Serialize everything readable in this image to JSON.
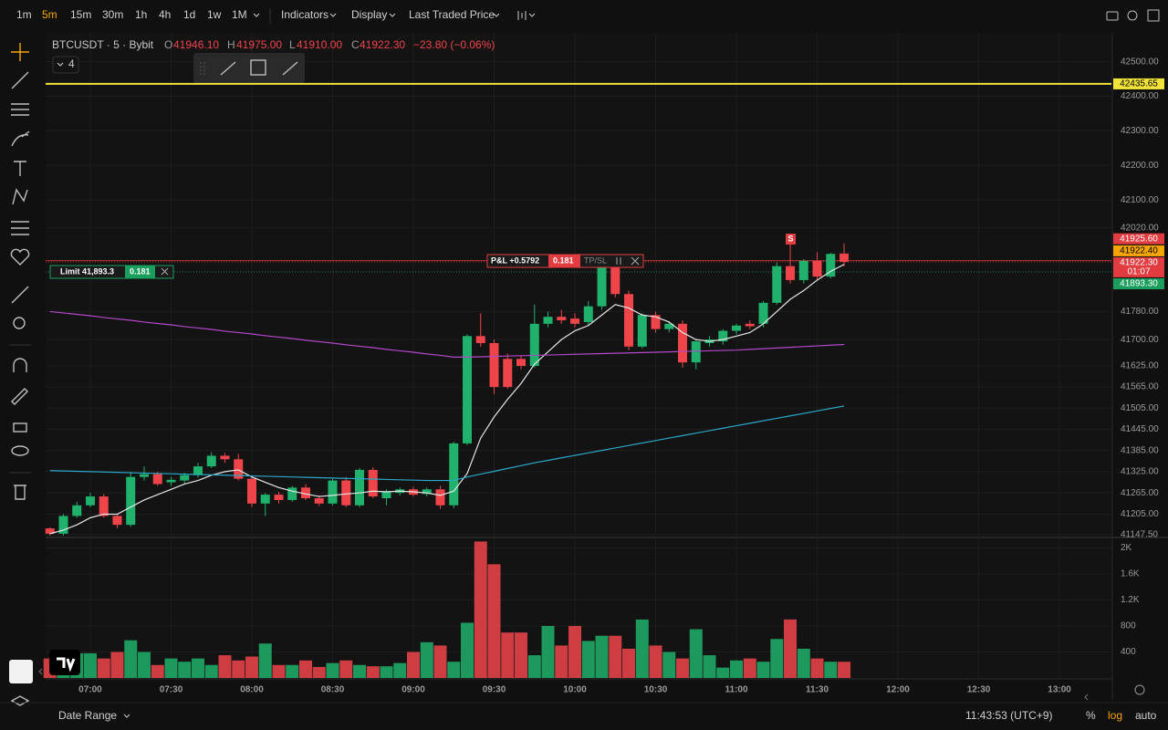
{
  "toolbar": {
    "intervals": [
      "1m",
      "5m",
      "15m",
      "30m",
      "1h",
      "4h",
      "1d",
      "1w",
      "1M"
    ],
    "active_interval": 1,
    "menus": [
      "Indicators",
      "Display",
      "Last Traded Price"
    ]
  },
  "legend": {
    "symbol": "BTCUSDT · 5 · Bybit",
    "o_label": "O",
    "open": "41946.10",
    "h_label": "H",
    "high": "41975.00",
    "l_label": "L",
    "low": "41910.00",
    "c_label": "C",
    "close": "41922.30",
    "change": "−23.80 (−0.06%)",
    "indicator_count": "4"
  },
  "position_chip": {
    "pnl": "P&L +0.5792",
    "qty": "0.181",
    "tpsl": "TP/SL"
  },
  "order_chip": {
    "label": "Limit 41,893.3",
    "qty": "0.181"
  },
  "sell_marker": "S",
  "bottom_bar": {
    "date_range": "Date Range",
    "clock": "11:43:53 (UTC+9)",
    "percent": "%",
    "log": "log",
    "auto": "auto"
  },
  "chart_data": {
    "type": "candlestick",
    "log": true,
    "grid": true,
    "up_color": "#20b26c",
    "down_color": "#ef454a",
    "x": [
      405,
      410,
      415,
      420,
      425,
      430,
      435,
      440,
      445,
      450,
      455,
      460,
      465,
      470,
      475,
      480,
      485,
      490,
      495,
      500,
      505,
      510,
      515,
      520,
      525,
      530,
      535,
      540,
      545,
      550,
      555,
      560,
      565,
      570,
      575,
      580,
      585,
      590,
      595,
      600,
      605,
      610,
      615,
      620,
      625,
      630,
      635,
      640,
      645,
      650,
      655,
      660,
      665,
      670,
      675,
      680,
      685,
      690,
      695,
      700
    ],
    "xlim": [
      403.4,
      799.3
    ],
    "xticks": [
      {
        "value": 420,
        "label": "07:00"
      },
      {
        "value": 450,
        "label": "07:30"
      },
      {
        "value": 480,
        "label": "08:00"
      },
      {
        "value": 510,
        "label": "08:30"
      },
      {
        "value": 540,
        "label": "09:00"
      },
      {
        "value": 570,
        "label": "09:30"
      },
      {
        "value": 600,
        "label": "10:00"
      },
      {
        "value": 630,
        "label": "10:30"
      },
      {
        "value": 660,
        "label": "11:00"
      },
      {
        "value": 690,
        "label": "11:30"
      },
      {
        "value": 720,
        "label": "12:00"
      },
      {
        "value": 750,
        "label": "12:30"
      },
      {
        "value": 780,
        "label": "13:00"
      }
    ],
    "open": [
      41165,
      41150,
      41200,
      41230,
      41255,
      41200,
      41175,
      41310,
      41318,
      41295,
      41300,
      41315,
      41340,
      41370,
      41360,
      41305,
      41235,
      41260,
      41245,
      41280,
      41250,
      41235,
      41300,
      41230,
      41330,
      41250,
      41265,
      41275,
      41262,
      41275,
      41230,
      41405,
      41710,
      41690,
      41645,
      41645,
      41625,
      41745,
      41765,
      41760,
      41750,
      41795,
      41925,
      41830,
      41680,
      41770,
      41730,
      41745,
      41635,
      41690,
      41695,
      41725,
      41745,
      41745,
      41805,
      41910,
      41870,
      41925,
      41880,
      41946.1
    ],
    "high": [
      41168,
      41205,
      41240,
      41265,
      41262,
      41205,
      41325,
      41340,
      41325,
      41310,
      41322,
      41350,
      41380,
      41378,
      41375,
      41310,
      41265,
      41268,
      41285,
      41290,
      41258,
      41305,
      41310,
      41335,
      41338,
      41275,
      41280,
      41282,
      41280,
      41285,
      41410,
      41715,
      41775,
      41700,
      41660,
      41655,
      41800,
      41780,
      41785,
      41775,
      41810,
      41940,
      41935,
      41840,
      41775,
      41780,
      41752,
      41755,
      41700,
      41710,
      41730,
      41745,
      41755,
      41810,
      41920,
      41975,
      41930,
      41950,
      41948,
      41975
    ],
    "low": [
      41145,
      41145,
      41195,
      41225,
      41195,
      41165,
      41170,
      41300,
      41285,
      41285,
      41290,
      41308,
      41335,
      41350,
      41300,
      41225,
      41200,
      41235,
      41240,
      41245,
      41228,
      41230,
      41225,
      41225,
      41250,
      41230,
      41258,
      41255,
      41255,
      41220,
      41222,
      41400,
      41680,
      41545,
      41560,
      41615,
      41620,
      41735,
      41745,
      41735,
      41740,
      41785,
      41820,
      41670,
      41675,
      41720,
      41720,
      41620,
      41615,
      41680,
      41685,
      41715,
      41730,
      41735,
      41800,
      41860,
      41860,
      41870,
      41875,
      41910
    ],
    "close": [
      41150,
      41200,
      41230,
      41255,
      41200,
      41175,
      41310,
      41318,
      41290,
      41302,
      41315,
      41340,
      41370,
      41360,
      41305,
      41235,
      41260,
      41245,
      41280,
      41250,
      41235,
      41300,
      41230,
      41330,
      41255,
      41270,
      41275,
      41260,
      41275,
      41230,
      41405,
      41710,
      41690,
      41565,
      41565,
      41625,
      41745,
      41765,
      41755,
      41745,
      41795,
      41930,
      41830,
      41680,
      41770,
      41730,
      41745,
      41635,
      41695,
      41700,
      41725,
      41740,
      41738,
      41805,
      41910,
      41870,
      41925,
      41880,
      41945,
      41922.3
    ],
    "ylim": [
      41142,
      42584
    ],
    "yticks": [
      {
        "value": 42500,
        "label": "42500.00"
      },
      {
        "value": 42400,
        "label": "42400.00"
      },
      {
        "value": 42300,
        "label": "42300.00"
      },
      {
        "value": 42200,
        "label": "42200.00"
      },
      {
        "value": 42100,
        "label": "42100.00"
      },
      {
        "value": 42020,
        "label": "42020.00"
      },
      {
        "value": 41780,
        "label": "41780.00"
      },
      {
        "value": 41700,
        "label": "41700.00"
      },
      {
        "value": 41625,
        "label": "41625.00"
      },
      {
        "value": 41565,
        "label": "41565.00"
      },
      {
        "value": 41505,
        "label": "41505.00"
      },
      {
        "value": 41445,
        "label": "41445.00"
      },
      {
        "value": 41385,
        "label": "41385.00"
      },
      {
        "value": 41325,
        "label": "41325.00"
      },
      {
        "value": 41265,
        "label": "41265.00"
      },
      {
        "value": 41205,
        "label": "41205.00"
      },
      {
        "value": 41147.5,
        "label": "41147.50"
      }
    ],
    "ma": [
      {
        "color": "#e6e6e6",
        "values": [
          41150,
          41160,
          41175,
          41195,
          41205,
          41205,
          41225,
          41245,
          41260,
          41275,
          41290,
          41300,
          41315,
          41325,
          41330,
          41310,
          41295,
          41280,
          41270,
          41262,
          41255,
          41258,
          41262,
          41265,
          41270,
          41268,
          41270,
          41268,
          41265,
          41258,
          41270,
          41320,
          41420,
          41480,
          41530,
          41575,
          41630,
          41665,
          41700,
          41725,
          41740,
          41770,
          41800,
          41790,
          41770,
          41765,
          41750,
          41720,
          41700,
          41695,
          41700,
          41710,
          41720,
          41745,
          41780,
          41815,
          41840,
          41870,
          41895,
          41915
        ]
      },
      {
        "color": "#b347c9",
        "values": [
          41780,
          41776,
          41772,
          41768,
          41763,
          41759,
          41755,
          41750,
          41746,
          41742,
          41737,
          41733,
          41729,
          41724,
          41720,
          41716,
          41711,
          41707,
          41703,
          41698,
          41694,
          41690,
          41685,
          41681,
          41677,
          41672,
          41668,
          41664,
          41659,
          41655,
          41650,
          41650,
          41651,
          41652,
          41653,
          41654,
          41655,
          41656,
          41657,
          41658,
          41659,
          41660,
          41661,
          41662,
          41663,
          41664,
          41665,
          41666,
          41667,
          41668,
          41669,
          41670,
          41672,
          41674,
          41676,
          41678,
          41680,
          41682,
          41684,
          41686
        ]
      },
      {
        "color": "#2aa8c8",
        "values": [
          41328,
          41327,
          41326,
          41325,
          41324,
          41323,
          41322,
          41321,
          41320,
          41319,
          41318,
          41317,
          41316,
          41315,
          41314,
          41313,
          41312,
          41311,
          41310,
          41309,
          41308,
          41307,
          41306,
          41305,
          41304,
          41303,
          41302,
          41301,
          41300,
          41300,
          41300,
          41310,
          41318,
          41326,
          41334,
          41342,
          41350,
          41357,
          41364,
          41371,
          41378,
          41385,
          41392,
          41399,
          41406,
          41413,
          41420,
          41427,
          41434,
          41441,
          41448,
          41455,
          41462,
          41469,
          41476,
          41483,
          41490,
          41497,
          41504,
          41511
        ]
      }
    ],
    "levels": [
      {
        "value": 42435.65,
        "label": "42435.65",
        "color": "#f2e33b",
        "text_color": "#000",
        "style": "solid"
      },
      {
        "value": 41925.6,
        "label": "41925.60",
        "color": "#e23c40",
        "text_color": "#fff",
        "style": "solid"
      },
      {
        "value": 41922.4,
        "label": "41922.40",
        "color": "#f7a600",
        "text_color": "#000"
      },
      {
        "value": 41922.3,
        "label": "41922.30",
        "countdown": "01:07",
        "color": "#e23c40",
        "text_color": "#fff",
        "style": "dotted"
      },
      {
        "value": 41893.3,
        "label": "41893.30",
        "color": "#1a9e5e",
        "text_color": "#fff",
        "style": "dotted"
      }
    ],
    "volume": {
      "values": [
        300,
        350,
        380,
        380,
        300,
        400,
        580,
        400,
        200,
        300,
        250,
        300,
        200,
        350,
        270,
        330,
        530,
        200,
        200,
        270,
        170,
        230,
        270,
        200,
        180,
        180,
        230,
        400,
        550,
        500,
        250,
        850,
        2100,
        1750,
        700,
        700,
        350,
        800,
        500,
        800,
        570,
        650,
        650,
        450,
        900,
        500,
        400,
        300,
        750,
        350,
        160,
        270,
        300,
        250,
        600,
        900,
        450,
        300,
        250,
        250
      ],
      "ylim": [
        0,
        2120
      ],
      "yticks": [
        {
          "value": 2000,
          "label": "2K"
        },
        {
          "value": 1600,
          "label": "1.6K"
        },
        {
          "value": 1200,
          "label": "1.2K"
        },
        800,
        400
      ]
    }
  }
}
